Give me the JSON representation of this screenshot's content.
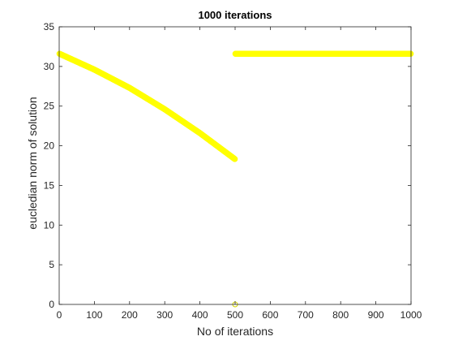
{
  "chart_data": {
    "type": "scatter",
    "title": "1000 iterations",
    "xlabel": "No of iterations",
    "ylabel": "eucledian norm of solution",
    "xlim": [
      0,
      1000
    ],
    "ylim": [
      0,
      35
    ],
    "xticks": [
      0,
      100,
      200,
      300,
      400,
      500,
      600,
      700,
      800,
      900,
      1000
    ],
    "yticks": [
      0,
      5,
      10,
      15,
      20,
      25,
      30,
      35
    ],
    "grid": false,
    "marker_color": "#ffff00",
    "marker": "circle",
    "series": [
      {
        "segments": [
          {
            "x_range": [
              1,
              500
            ],
            "anchor_points": [
              [
                1,
                31.6
              ],
              [
                100,
                29.6
              ],
              [
                200,
                27.3
              ],
              [
                300,
                24.6
              ],
              [
                400,
                21.6
              ],
              [
                500,
                18.3
              ]
            ]
          },
          {
            "x_range": [
              501,
              1000
            ],
            "anchor_points": [
              [
                501,
                31.6
              ],
              [
                1000,
                31.6
              ]
            ]
          }
        ],
        "outliers": [
          [
            500,
            0
          ]
        ]
      }
    ]
  }
}
